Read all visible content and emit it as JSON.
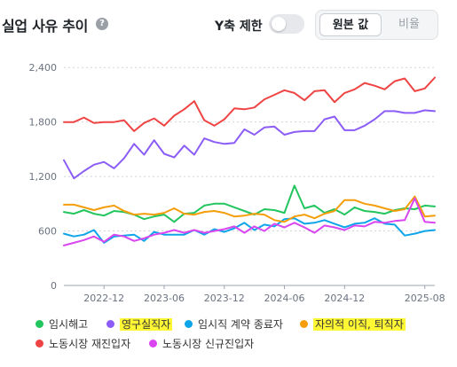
{
  "header": {
    "title": "실업 사유 추이",
    "help_icon": "?",
    "y_limit_label": "Y축 제한",
    "toggle_on": false,
    "segment": {
      "raw_label": "원본 값",
      "ratio_label": "비율",
      "selected": "raw"
    }
  },
  "chart_data": {
    "type": "line",
    "x": [
      "2022-08",
      "2022-09",
      "2022-10",
      "2022-11",
      "2022-12",
      "2023-01",
      "2023-02",
      "2023-03",
      "2023-04",
      "2023-05",
      "2023-06",
      "2023-07",
      "2023-08",
      "2023-09",
      "2023-10",
      "2023-11",
      "2023-12",
      "2024-01",
      "2024-02",
      "2024-03",
      "2024-04",
      "2024-05",
      "2024-06",
      "2024-07",
      "2024-08",
      "2024-09",
      "2024-10",
      "2024-11",
      "2024-12",
      "2025-01",
      "2025-02",
      "2025-03",
      "2025-04",
      "2025-05",
      "2025-06",
      "2025-07",
      "2025-08",
      "2025-09"
    ],
    "x_tick_labels": [
      "2022-12",
      "2023-06",
      "2023-12",
      "2024-06",
      "2024-12",
      "2025-08"
    ],
    "y_ticks": [
      0,
      600,
      1200,
      1800,
      2400
    ],
    "ylim": [
      0,
      2500
    ],
    "grid": "horizontal dotted",
    "legend_position": "bottom",
    "series": [
      {
        "name": "임시해고",
        "color": "#22c55e",
        "values": [
          810,
          790,
          830,
          790,
          770,
          820,
          810,
          780,
          730,
          760,
          780,
          700,
          790,
          800,
          880,
          900,
          900,
          860,
          820,
          780,
          840,
          830,
          800,
          1100,
          850,
          880,
          800,
          840,
          780,
          860,
          820,
          810,
          790,
          830,
          850,
          840,
          880,
          870
        ]
      },
      {
        "name": "영구실직자",
        "color": "#8b5cf6",
        "highlight": true,
        "values": [
          1380,
          1180,
          1260,
          1330,
          1360,
          1290,
          1400,
          1560,
          1440,
          1600,
          1450,
          1410,
          1540,
          1440,
          1620,
          1580,
          1560,
          1570,
          1720,
          1660,
          1740,
          1750,
          1660,
          1690,
          1700,
          1700,
          1830,
          1860,
          1710,
          1710,
          1760,
          1830,
          1920,
          1920,
          1900,
          1900,
          1930,
          1920
        ]
      },
      {
        "name": "임시직 계약 종료자",
        "color": "#0ea5e9",
        "values": [
          570,
          540,
          560,
          610,
          470,
          540,
          550,
          560,
          490,
          590,
          560,
          560,
          560,
          610,
          560,
          620,
          590,
          630,
          690,
          610,
          670,
          650,
          730,
          740,
          680,
          690,
          720,
          680,
          640,
          680,
          690,
          740,
          680,
          670,
          550,
          570,
          600,
          610
        ]
      },
      {
        "name": "자의적 이직, 퇴직자",
        "color": "#f59e0b",
        "highlight": true,
        "values": [
          890,
          890,
          860,
          830,
          860,
          880,
          820,
          780,
          790,
          780,
          800,
          850,
          790,
          780,
          810,
          820,
          800,
          760,
          770,
          790,
          780,
          720,
          700,
          760,
          780,
          740,
          790,
          820,
          940,
          940,
          900,
          880,
          850,
          820,
          840,
          980,
          760,
          770
        ]
      },
      {
        "name": "노동시장 재진입자",
        "color": "#ef4444",
        "values": [
          1800,
          1800,
          1850,
          1790,
          1800,
          1800,
          1820,
          1700,
          1790,
          1840,
          1760,
          1870,
          1940,
          2030,
          1820,
          1760,
          1830,
          1950,
          1940,
          1960,
          2050,
          2100,
          2150,
          2120,
          2040,
          2140,
          2150,
          2020,
          2120,
          2160,
          2230,
          2200,
          2160,
          2250,
          2280,
          2140,
          2170,
          2290
        ]
      },
      {
        "name": "노동시장 신규진입자",
        "color": "#d946ef",
        "values": [
          440,
          470,
          500,
          540,
          480,
          560,
          540,
          490,
          520,
          560,
          580,
          610,
          580,
          610,
          580,
          600,
          620,
          650,
          580,
          650,
          600,
          680,
          640,
          690,
          640,
          580,
          660,
          640,
          610,
          660,
          650,
          700,
          690,
          710,
          720,
          960,
          700,
          690
        ]
      }
    ]
  }
}
